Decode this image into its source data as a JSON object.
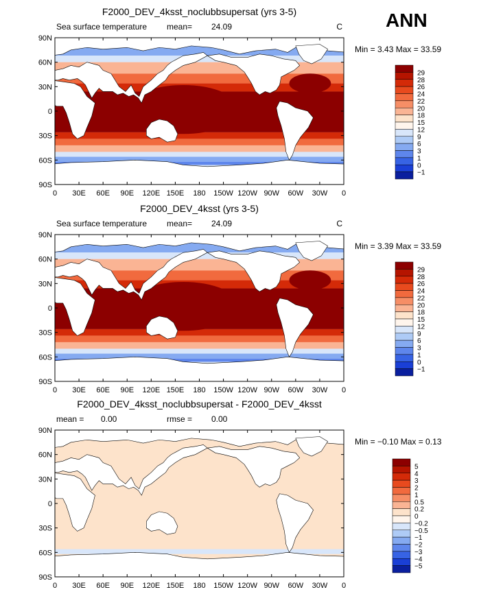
{
  "season": "ANN",
  "panels": [
    {
      "title": "F2000_DEV_4ksst_noclubbsupersat (yrs 3-5)",
      "field_label": "Sea surface temperature",
      "stat1_label": "mean=",
      "stat1_value": "24.09",
      "stat2_label": "",
      "stat2_value": "",
      "units": "C",
      "minmax": "Min =   3.43 Max =  33.59",
      "colorbar_labels": [
        "29",
        "28",
        "26",
        "24",
        "22",
        "20",
        "18",
        "15",
        "12",
        "9",
        "6",
        "3",
        "1",
        "0",
        "−1"
      ],
      "colorbar_colors": [
        "#8c0000",
        "#b51400",
        "#d42a08",
        "#e84a1e",
        "#f16a3e",
        "#f68e66",
        "#fab494",
        "#fde3cb",
        "#fff5ec",
        "#d8e6fa",
        "#aecbf6",
        "#85aaf1",
        "#5e86ec",
        "#3763e4",
        "#1a3fd6",
        "#0a1f9e"
      ]
    },
    {
      "title": "F2000_DEV_4ksst (yrs 3-5)",
      "field_label": "Sea surface temperature",
      "stat1_label": "mean=",
      "stat1_value": "24.09",
      "stat2_label": "",
      "stat2_value": "",
      "units": "C",
      "minmax": "Min =   3.39 Max =  33.59",
      "colorbar_labels": [
        "29",
        "28",
        "26",
        "24",
        "22",
        "20",
        "18",
        "15",
        "12",
        "9",
        "6",
        "3",
        "1",
        "0",
        "−1"
      ],
      "colorbar_colors": [
        "#8c0000",
        "#b51400",
        "#d42a08",
        "#e84a1e",
        "#f16a3e",
        "#f68e66",
        "#fab494",
        "#fde3cb",
        "#fff5ec",
        "#d8e6fa",
        "#aecbf6",
        "#85aaf1",
        "#5e86ec",
        "#3763e4",
        "#1a3fd6",
        "#0a1f9e"
      ]
    },
    {
      "title": "F2000_DEV_4ksst_noclubbsupersat - F2000_DEV_4ksst",
      "field_label": "",
      "stat1_label": "mean =",
      "stat1_value": "0.00",
      "stat2_label": "rmse =",
      "stat2_value": "0.00",
      "units": "",
      "minmax": "Min =  −0.10 Max =   0.13",
      "colorbar_labels": [
        "5",
        "4",
        "3",
        "2",
        "1",
        "0.5",
        "0.2",
        "0",
        "−0.2",
        "−0.5",
        "−1",
        "−2",
        "−3",
        "−4",
        "−5"
      ],
      "colorbar_colors": [
        "#8c0000",
        "#b51400",
        "#d42a08",
        "#e84a1e",
        "#f16a3e",
        "#f68e66",
        "#fab494",
        "#fde3cb",
        "#fff5ec",
        "#d8e6fa",
        "#aecbf6",
        "#85aaf1",
        "#5e86ec",
        "#3763e4",
        "#1a3fd6",
        "#0a1f9e"
      ]
    }
  ],
  "lat_labels": [
    "90N",
    "60N",
    "30N",
    "0",
    "30S",
    "60S",
    "90S"
  ],
  "lon_labels": [
    "0",
    "30E",
    "60E",
    "90E",
    "120E",
    "150E",
    "180",
    "150W",
    "120W",
    "90W",
    "60W",
    "30W",
    "0"
  ],
  "palette": {
    "sst": {
      "land": "#ffffff",
      "tropical": "#8c0000",
      "warm": "#d42a08",
      "mid": "#f16a3e",
      "mild": "#fab494",
      "cool": "#d8e6fa",
      "cold": "#85aaf1",
      "ice": "#5e86ec"
    },
    "diff": {
      "land": "#ffffff",
      "ocean": "#fde3cb",
      "band": "#d8e6fa"
    }
  }
}
